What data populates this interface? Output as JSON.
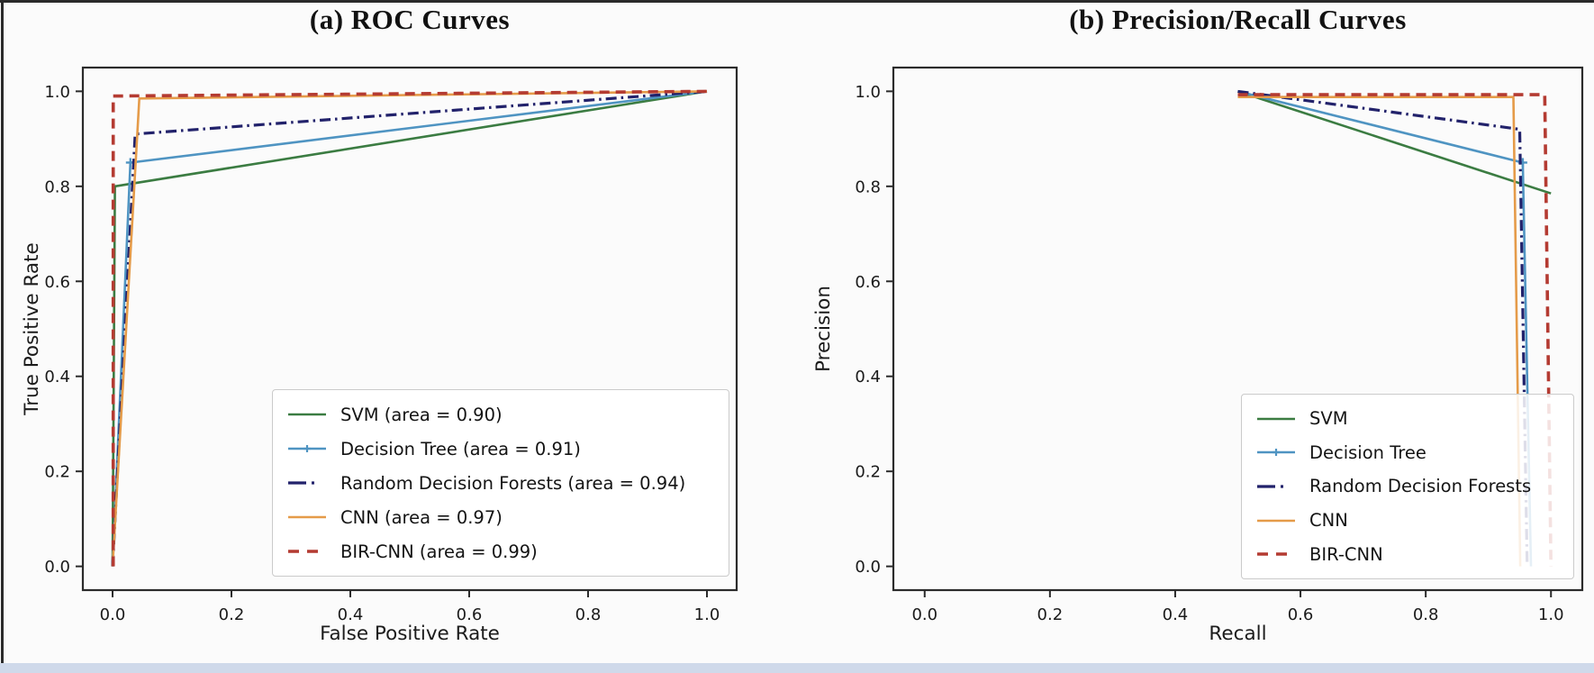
{
  "figure": {
    "background": "#fbfbfb",
    "footer_band_color": "#cfd9ea",
    "edge_line_color": "#2a2a2a"
  },
  "chart_data": [
    {
      "type": "line",
      "title": "(a) ROC Curves",
      "xlabel": "False Positive Rate",
      "ylabel": "True Positive Rate",
      "xlim": [
        -0.05,
        1.05
      ],
      "ylim": [
        -0.05,
        1.05
      ],
      "xticks": [
        0.0,
        0.2,
        0.4,
        0.6,
        0.8,
        1.0
      ],
      "yticks": [
        0.0,
        0.2,
        0.4,
        0.6,
        0.8,
        1.0
      ],
      "grid": false,
      "legend_position": "lower right",
      "series": [
        {
          "name": "SVM (area = 0.90)",
          "color": "#3b7c42",
          "dash": "solid",
          "width": 2.6,
          "points": [
            [
              0.0,
              0.0
            ],
            [
              0.004,
              0.8
            ],
            [
              1.0,
              1.0
            ]
          ]
        },
        {
          "name": "Decision Tree (area = 0.91)",
          "color": "#4f94c2",
          "dash": "solid",
          "width": 2.6,
          "marker": "plus",
          "marker_at": [
            1
          ],
          "points": [
            [
              0.0,
              0.0
            ],
            [
              0.03,
              0.85
            ],
            [
              1.0,
              1.0
            ]
          ]
        },
        {
          "name": "Random Decision Forests (area = 0.94)",
          "color": "#22226b",
          "dash": "dashdot",
          "width": 3.2,
          "points": [
            [
              0.0,
              0.0
            ],
            [
              0.038,
              0.91
            ],
            [
              1.0,
              1.0
            ]
          ]
        },
        {
          "name": "CNN (area = 0.97)",
          "color": "#e59b49",
          "dash": "solid",
          "width": 2.6,
          "points": [
            [
              0.0,
              0.0
            ],
            [
              0.045,
              0.985
            ],
            [
              1.0,
              1.0
            ]
          ]
        },
        {
          "name": "BIR-CNN (area = 0.99)",
          "color": "#b43b32",
          "dash": "dashed",
          "width": 3.6,
          "points": [
            [
              0.001,
              0.0
            ],
            [
              0.001,
              0.99
            ],
            [
              1.0,
              1.0
            ]
          ]
        }
      ]
    },
    {
      "type": "line",
      "title": "(b) Precision/Recall Curves",
      "xlabel": "Recall",
      "ylabel": "Precision",
      "xlim": [
        -0.05,
        1.05
      ],
      "ylim": [
        -0.05,
        1.05
      ],
      "xticks": [
        0.0,
        0.2,
        0.4,
        0.6,
        0.8,
        1.0
      ],
      "yticks": [
        0.0,
        0.2,
        0.4,
        0.6,
        0.8,
        1.0
      ],
      "grid": false,
      "legend_position": "lower right",
      "series": [
        {
          "name": "SVM",
          "color": "#3b7c42",
          "dash": "solid",
          "width": 2.6,
          "points": [
            [
              0.5,
              1.0
            ],
            [
              1.0,
              0.785
            ]
          ]
        },
        {
          "name": "Decision Tree",
          "color": "#4f94c2",
          "dash": "solid",
          "width": 2.6,
          "marker": "plus",
          "marker_at": [
            1
          ],
          "points": [
            [
              0.5,
              1.0
            ],
            [
              0.955,
              0.85
            ],
            [
              0.968,
              0.0
            ]
          ]
        },
        {
          "name": "Random Decision Forests",
          "color": "#22226b",
          "dash": "dashdot",
          "width": 3.2,
          "points": [
            [
              0.5,
              1.0
            ],
            [
              0.95,
              0.92
            ],
            [
              0.962,
              0.0
            ]
          ]
        },
        {
          "name": "CNN",
          "color": "#e59b49",
          "dash": "solid",
          "width": 2.6,
          "points": [
            [
              0.5,
              0.988
            ],
            [
              0.94,
              0.988
            ],
            [
              0.951,
              0.0
            ]
          ]
        },
        {
          "name": "BIR-CNN",
          "color": "#b43b32",
          "dash": "dashed",
          "width": 3.6,
          "points": [
            [
              0.5,
              0.993
            ],
            [
              0.99,
              0.993
            ],
            [
              1.0,
              0.0
            ]
          ]
        }
      ]
    }
  ]
}
